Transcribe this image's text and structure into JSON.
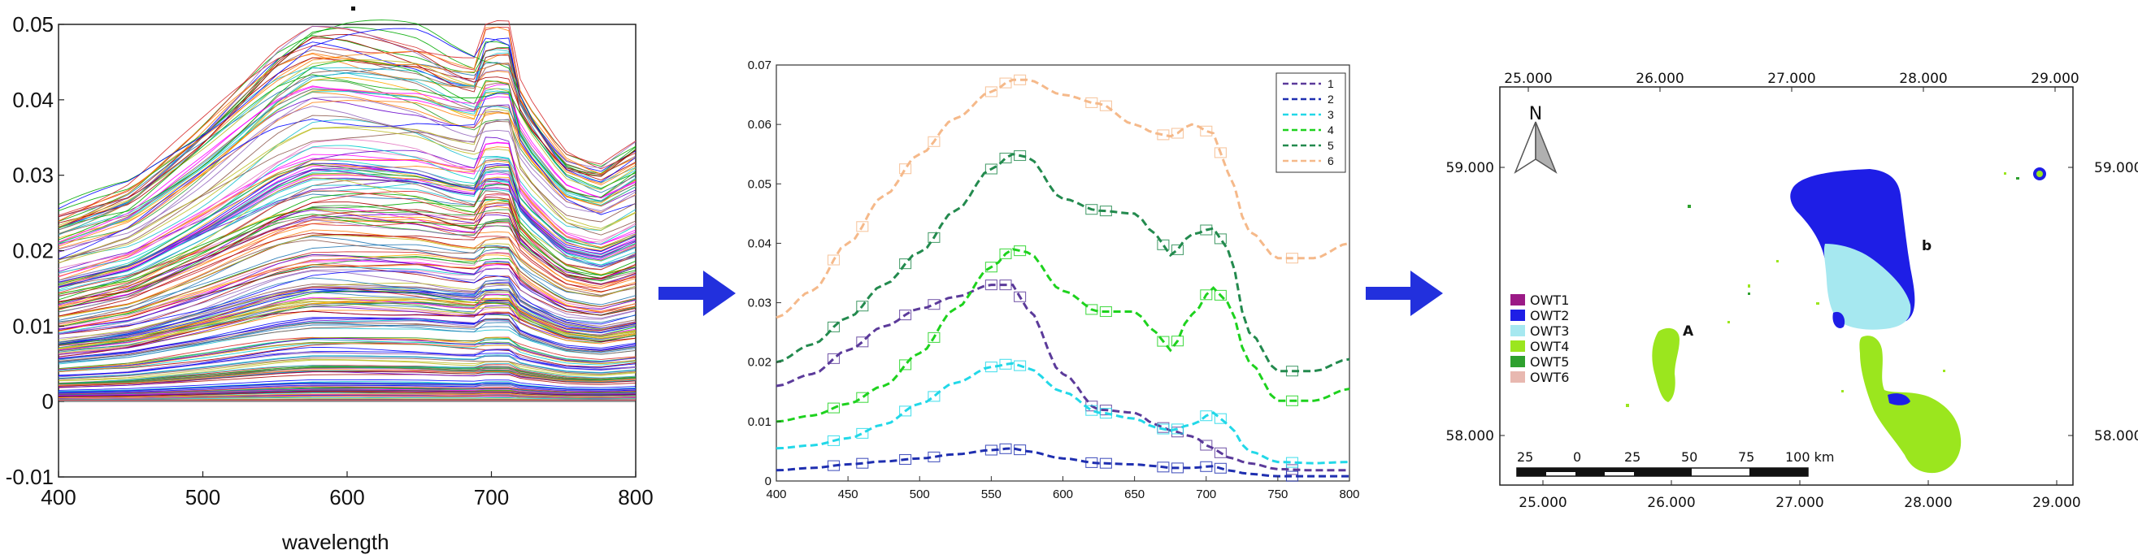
{
  "chart_data": [
    {
      "type": "line",
      "title": "",
      "xlabel": "wavelength",
      "ylabel": "",
      "xlim": [
        400,
        800
      ],
      "ylim": [
        -0.01,
        0.05
      ],
      "xticks": [
        "400",
        "500",
        "600",
        "700",
        "800"
      ],
      "yticks": [
        "-0.01",
        "0",
        "0.01",
        "0.02",
        "0.03",
        "0.04",
        "0.05"
      ],
      "x": [
        400,
        450,
        500,
        550,
        575,
        600,
        650,
        675,
        700,
        710,
        725,
        750,
        775,
        800
      ],
      "envelope_upper": [
        0.025,
        0.029,
        0.037,
        0.046,
        0.049,
        0.049,
        0.048,
        0.046,
        0.045,
        0.046,
        0.04,
        0.033,
        0.031,
        0.034
      ],
      "envelope_lower": [
        0.0,
        0.0,
        0.0,
        0.0,
        0.0,
        0.0,
        0.0,
        0.0,
        0.0,
        0.0,
        0.0,
        0.0,
        0.0,
        0.0
      ],
      "series_count_visible": "many (several hundred)",
      "grid": false
    },
    {
      "type": "line",
      "title": "",
      "xlabel": "",
      "ylabel": "",
      "xlim": [
        400,
        800
      ],
      "ylim": [
        0,
        0.07
      ],
      "xticks": [
        "400",
        "450",
        "500",
        "550",
        "600",
        "650",
        "700",
        "750",
        "800"
      ],
      "yticks": [
        "0",
        "0.01",
        "0.02",
        "0.03",
        "0.04",
        "0.05",
        "0.06",
        "0.07"
      ],
      "legend_position": "top-right",
      "x": [
        400,
        425,
        450,
        475,
        500,
        525,
        550,
        565,
        575,
        600,
        625,
        650,
        665,
        675,
        690,
        705,
        715,
        730,
        750,
        775,
        800
      ],
      "series": [
        {
          "name": "1",
          "color": "#5b3a9a",
          "values": [
            0.016,
            0.018,
            0.022,
            0.026,
            0.029,
            0.031,
            0.033,
            0.033,
            0.029,
            0.018,
            0.012,
            0.0115,
            0.0095,
            0.0085,
            0.0075,
            0.0055,
            0.004,
            0.003,
            0.002,
            0.0018,
            0.0018
          ]
        },
        {
          "name": "2",
          "color": "#1f2fb0",
          "values": [
            0.0018,
            0.0022,
            0.0028,
            0.0033,
            0.0038,
            0.0045,
            0.0052,
            0.0055,
            0.005,
            0.0038,
            0.003,
            0.0028,
            0.0025,
            0.0022,
            0.0022,
            0.0025,
            0.0018,
            0.0012,
            0.0008,
            0.0008,
            0.0008
          ]
        },
        {
          "name": "3",
          "color": "#22d8e8",
          "values": [
            0.0055,
            0.006,
            0.0072,
            0.0095,
            0.013,
            0.0165,
            0.0192,
            0.0198,
            0.019,
            0.015,
            0.0115,
            0.0105,
            0.009,
            0.0085,
            0.0095,
            0.0115,
            0.0095,
            0.005,
            0.0032,
            0.003,
            0.0032
          ]
        },
        {
          "name": "4",
          "color": "#1ed21e",
          "values": [
            0.01,
            0.011,
            0.013,
            0.016,
            0.0215,
            0.029,
            0.036,
            0.039,
            0.0385,
            0.032,
            0.0285,
            0.0285,
            0.025,
            0.022,
            0.028,
            0.0325,
            0.03,
            0.02,
            0.0135,
            0.0135,
            0.0155
          ]
        },
        {
          "name": "5",
          "color": "#238a4e",
          "values": [
            0.02,
            0.023,
            0.0275,
            0.033,
            0.0385,
            0.0455,
            0.0525,
            0.055,
            0.0545,
            0.0475,
            0.0455,
            0.045,
            0.0415,
            0.038,
            0.0415,
            0.0425,
            0.039,
            0.025,
            0.0185,
            0.0185,
            0.0205
          ]
        },
        {
          "name": "6",
          "color": "#f5b98a",
          "values": [
            0.0275,
            0.032,
            0.04,
            0.048,
            0.055,
            0.061,
            0.0655,
            0.0675,
            0.0675,
            0.065,
            0.0635,
            0.06,
            0.0585,
            0.058,
            0.06,
            0.0585,
            0.052,
            0.042,
            0.0375,
            0.0375,
            0.04
          ]
        }
      ],
      "grid": false
    }
  ],
  "map": {
    "type": "map",
    "top_ticks": [
      "25.000",
      "26.000",
      "27.000",
      "28.000",
      "29.000"
    ],
    "bottom_ticks": [
      "25.000",
      "26.000",
      "27.000",
      "28.000",
      "29.000"
    ],
    "right_ticks": [
      "59.000",
      "58.000"
    ],
    "left_ticks": [
      "59.000",
      "58.000"
    ],
    "north_label": "N",
    "label_a": "A",
    "label_b": "b",
    "legend": [
      {
        "label": "OWT1",
        "color": "#9b1a86"
      },
      {
        "label": "OWT2",
        "color": "#1e1ee6"
      },
      {
        "label": "OWT3",
        "color": "#a6e8f0"
      },
      {
        "label": "OWT4",
        "color": "#9be61e"
      },
      {
        "label": "OWT5",
        "color": "#2ea02e"
      },
      {
        "label": "OWT6",
        "color": "#e8b8b0"
      }
    ],
    "scale_labels": [
      "25",
      "0",
      "25",
      "50",
      "75",
      "100 km"
    ]
  },
  "arrow_color": "#2230dd"
}
